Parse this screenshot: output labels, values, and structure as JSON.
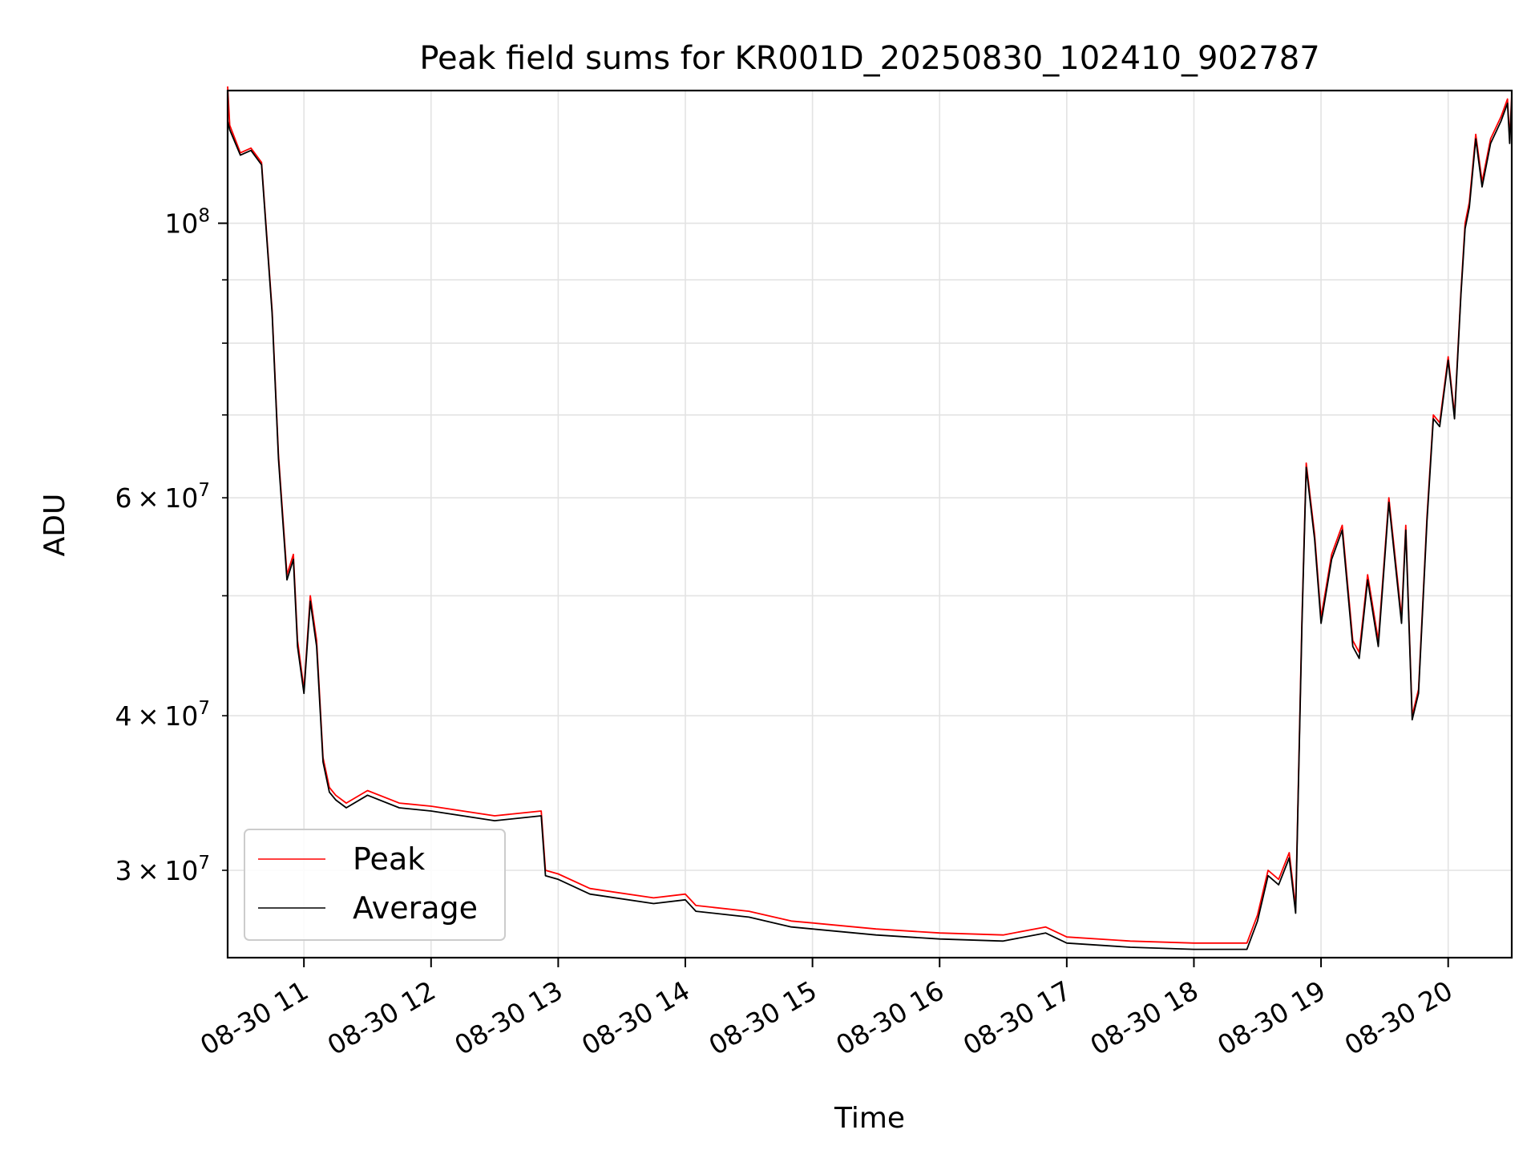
{
  "chart_data": {
    "type": "line",
    "title": "Peak field sums for KR001D_20250830_102410_902787",
    "xlabel": "Time",
    "ylabel": "ADU",
    "yscale": "log",
    "grid": true,
    "legend_position": "lower-left",
    "xlim": [
      "2025-08-30 10:24",
      "2025-08-30 20:30"
    ],
    "ylim": [
      25500000,
      128000000
    ],
    "x_ticks": [
      {
        "value": "2025-08-30 11:00",
        "label": "08-30 11"
      },
      {
        "value": "2025-08-30 12:00",
        "label": "08-30 12"
      },
      {
        "value": "2025-08-30 13:00",
        "label": "08-30 13"
      },
      {
        "value": "2025-08-30 14:00",
        "label": "08-30 14"
      },
      {
        "value": "2025-08-30 15:00",
        "label": "08-30 15"
      },
      {
        "value": "2025-08-30 16:00",
        "label": "08-30 16"
      },
      {
        "value": "2025-08-30 17:00",
        "label": "08-30 17"
      },
      {
        "value": "2025-08-30 18:00",
        "label": "08-30 18"
      },
      {
        "value": "2025-08-30 19:00",
        "label": "08-30 19"
      },
      {
        "value": "2025-08-30 20:00",
        "label": "08-30 20"
      }
    ],
    "y_major_ticks": [
      {
        "value": 100000000,
        "base": "10",
        "exp": "8"
      }
    ],
    "y_minor_ticks": [
      {
        "value": 30000000,
        "mant": "3",
        "exp": "7"
      },
      {
        "value": 40000000,
        "mant": "4",
        "exp": "7"
      },
      {
        "value": 50000000,
        "mant": "",
        "exp": ""
      },
      {
        "value": 60000000,
        "mant": "6",
        "exp": "7"
      },
      {
        "value": 70000000,
        "mant": "",
        "exp": ""
      },
      {
        "value": 80000000,
        "mant": "",
        "exp": ""
      },
      {
        "value": 90000000,
        "mant": "",
        "exp": ""
      }
    ],
    "times_symbol": "×",
    "series": [
      {
        "name": "Peak",
        "color": "#ff0000",
        "x": [
          "2025-08-30 10:24",
          "2025-08-30 10:25",
          "2025-08-30 10:30",
          "2025-08-30 10:35",
          "2025-08-30 10:40",
          "2025-08-30 10:45",
          "2025-08-30 10:48",
          "2025-08-30 10:52",
          "2025-08-30 10:55",
          "2025-08-30 10:57",
          "2025-08-30 11:00",
          "2025-08-30 11:03",
          "2025-08-30 11:06",
          "2025-08-30 11:09",
          "2025-08-30 11:12",
          "2025-08-30 11:15",
          "2025-08-30 11:20",
          "2025-08-30 11:30",
          "2025-08-30 11:45",
          "2025-08-30 12:00",
          "2025-08-30 12:30",
          "2025-08-30 12:52",
          "2025-08-30 12:54",
          "2025-08-30 13:00",
          "2025-08-30 13:15",
          "2025-08-30 13:45",
          "2025-08-30 14:00",
          "2025-08-30 14:05",
          "2025-08-30 14:30",
          "2025-08-30 14:50",
          "2025-08-30 15:00",
          "2025-08-30 15:30",
          "2025-08-30 16:00",
          "2025-08-30 16:30",
          "2025-08-30 16:50",
          "2025-08-30 17:00",
          "2025-08-30 17:30",
          "2025-08-30 18:00",
          "2025-08-30 18:25",
          "2025-08-30 18:30",
          "2025-08-30 18:35",
          "2025-08-30 18:40",
          "2025-08-30 18:45",
          "2025-08-30 18:48",
          "2025-08-30 18:51",
          "2025-08-30 18:53",
          "2025-08-30 18:57",
          "2025-08-30 19:00",
          "2025-08-30 19:05",
          "2025-08-30 19:10",
          "2025-08-30 19:15",
          "2025-08-30 19:18",
          "2025-08-30 19:22",
          "2025-08-30 19:27",
          "2025-08-30 19:32",
          "2025-08-30 19:38",
          "2025-08-30 19:40",
          "2025-08-30 19:43",
          "2025-08-30 19:46",
          "2025-08-30 19:50",
          "2025-08-30 19:53",
          "2025-08-30 19:56",
          "2025-08-30 20:00",
          "2025-08-30 20:03",
          "2025-08-30 20:06",
          "2025-08-30 20:08",
          "2025-08-30 20:10",
          "2025-08-30 20:13",
          "2025-08-30 20:16",
          "2025-08-30 20:20",
          "2025-08-30 20:25",
          "2025-08-30 20:28",
          "2025-08-30 20:29",
          "2025-08-30 20:30"
        ],
        "values": [
          129000000,
          120000000,
          114000000,
          115000000,
          112000000,
          85000000,
          65000000,
          52000000,
          54000000,
          46000000,
          42000000,
          50000000,
          46000000,
          37000000,
          35000000,
          34500000,
          34000000,
          34800000,
          34000000,
          33800000,
          33200000,
          33500000,
          30000000,
          29800000,
          29000000,
          28500000,
          28700000,
          28100000,
          27800000,
          27300000,
          27200000,
          26900000,
          26700000,
          26600000,
          27000000,
          26500000,
          26300000,
          26200000,
          26200000,
          27600000,
          30000000,
          29500000,
          31000000,
          28000000,
          48000000,
          64000000,
          56000000,
          48000000,
          54000000,
          57000000,
          46000000,
          45000000,
          52000000,
          46000000,
          60000000,
          48000000,
          57000000,
          40000000,
          42000000,
          58000000,
          70000000,
          69000000,
          78000000,
          70000000,
          88000000,
          100000000,
          104000000,
          118000000,
          108000000,
          117000000,
          122000000,
          126000000,
          117000000,
          127000000
        ]
      },
      {
        "name": "Average",
        "color": "#000000",
        "x": [
          "2025-08-30 10:24",
          "2025-08-30 10:25",
          "2025-08-30 10:30",
          "2025-08-30 10:35",
          "2025-08-30 10:40",
          "2025-08-30 10:45",
          "2025-08-30 10:48",
          "2025-08-30 10:52",
          "2025-08-30 10:55",
          "2025-08-30 10:57",
          "2025-08-30 11:00",
          "2025-08-30 11:03",
          "2025-08-30 11:06",
          "2025-08-30 11:09",
          "2025-08-30 11:12",
          "2025-08-30 11:15",
          "2025-08-30 11:20",
          "2025-08-30 11:30",
          "2025-08-30 11:45",
          "2025-08-30 12:00",
          "2025-08-30 12:30",
          "2025-08-30 12:52",
          "2025-08-30 12:54",
          "2025-08-30 13:00",
          "2025-08-30 13:15",
          "2025-08-30 13:45",
          "2025-08-30 14:00",
          "2025-08-30 14:05",
          "2025-08-30 14:30",
          "2025-08-30 14:50",
          "2025-08-30 15:00",
          "2025-08-30 15:30",
          "2025-08-30 16:00",
          "2025-08-30 16:30",
          "2025-08-30 16:50",
          "2025-08-30 17:00",
          "2025-08-30 17:30",
          "2025-08-30 18:00",
          "2025-08-30 18:25",
          "2025-08-30 18:30",
          "2025-08-30 18:35",
          "2025-08-30 18:40",
          "2025-08-30 18:45",
          "2025-08-30 18:48",
          "2025-08-30 18:51",
          "2025-08-30 18:53",
          "2025-08-30 18:57",
          "2025-08-30 19:00",
          "2025-08-30 19:05",
          "2025-08-30 19:10",
          "2025-08-30 19:15",
          "2025-08-30 19:18",
          "2025-08-30 19:22",
          "2025-08-30 19:27",
          "2025-08-30 19:32",
          "2025-08-30 19:38",
          "2025-08-30 19:40",
          "2025-08-30 19:43",
          "2025-08-30 19:46",
          "2025-08-30 19:50",
          "2025-08-30 19:53",
          "2025-08-30 19:56",
          "2025-08-30 20:00",
          "2025-08-30 20:03",
          "2025-08-30 20:06",
          "2025-08-30 20:08",
          "2025-08-30 20:10",
          "2025-08-30 20:13",
          "2025-08-30 20:16",
          "2025-08-30 20:20",
          "2025-08-30 20:25",
          "2025-08-30 20:28",
          "2025-08-30 20:29",
          "2025-08-30 20:30"
        ],
        "values": [
          121000000,
          119000000,
          113500000,
          114500000,
          111500000,
          84500000,
          64500000,
          51500000,
          53500000,
          45500000,
          41700000,
          49500000,
          45500000,
          36700000,
          34700000,
          34200000,
          33700000,
          34500000,
          33700000,
          33500000,
          32900000,
          33200000,
          29700000,
          29500000,
          28700000,
          28200000,
          28400000,
          27800000,
          27500000,
          27000000,
          26900000,
          26600000,
          26400000,
          26300000,
          26700000,
          26200000,
          26000000,
          25900000,
          25900000,
          27300000,
          29700000,
          29200000,
          30700000,
          27700000,
          47500000,
          63500000,
          55500000,
          47500000,
          53500000,
          56500000,
          45500000,
          44500000,
          51500000,
          45500000,
          59500000,
          47500000,
          56500000,
          39700000,
          41700000,
          57500000,
          69500000,
          68500000,
          77500000,
          69500000,
          87500000,
          99000000,
          103000000,
          117000000,
          107000000,
          116000000,
          121000000,
          125000000,
          116000000,
          126000000
        ]
      }
    ]
  }
}
